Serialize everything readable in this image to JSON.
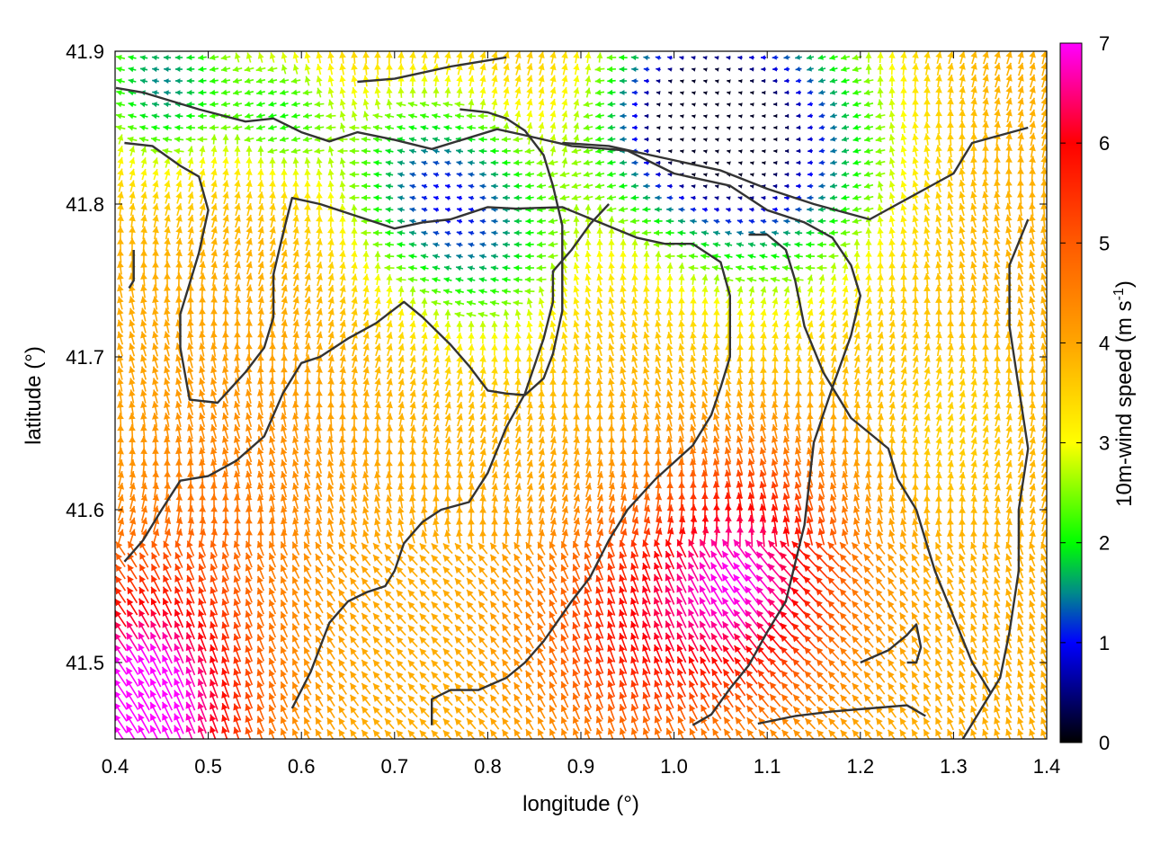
{
  "chart_data": {
    "type": "vector-field",
    "title": "",
    "xlabel": "longitude (°)",
    "ylabel": "latitude (°)",
    "colorbar_label_prefix": "10m-wind speed (m s",
    "colorbar_label_exp": "-1",
    "colorbar_label_suffix": ")",
    "xlim": [
      0.4,
      1.4
    ],
    "ylim": [
      41.45,
      41.9
    ],
    "x_ticks": [
      0.4,
      0.5,
      0.6,
      0.7,
      0.8,
      0.9,
      1.0,
      1.1,
      1.2,
      1.3,
      1.4
    ],
    "x_tick_labels": [
      "0.4",
      "0.5",
      "0.6",
      "0.7",
      "0.8",
      "0.9",
      "1.0",
      "1.1",
      "1.2",
      "1.3",
      "1.4"
    ],
    "y_ticks": [
      41.5,
      41.6,
      41.7,
      41.8,
      41.9
    ],
    "y_tick_labels": [
      "41.5",
      "41.6",
      "41.7",
      "41.8",
      "41.9"
    ],
    "colorbar_range": [
      0,
      7
    ],
    "colorbar_ticks": [
      0,
      1,
      2,
      3,
      4,
      5,
      6,
      7
    ],
    "colorbar_tick_labels": [
      "0",
      "1",
      "2",
      "3",
      "4",
      "5",
      "6",
      "7"
    ],
    "colormap_stops": [
      {
        "v": 0,
        "c": "#000000"
      },
      {
        "v": 1,
        "c": "#0000ff"
      },
      {
        "v": 1.5,
        "c": "#008a8a"
      },
      {
        "v": 2,
        "c": "#00ff00"
      },
      {
        "v": 3,
        "c": "#ffff00"
      },
      {
        "v": 4,
        "c": "#ffa500"
      },
      {
        "v": 5,
        "c": "#ff5a00"
      },
      {
        "v": 6,
        "c": "#ff0000"
      },
      {
        "v": 7,
        "c": "#ff00ff"
      }
    ],
    "grid": false,
    "wind_regions": [
      {
        "region": "northwest low-speed band",
        "lon": [
          0.4,
          0.62
        ],
        "lat": [
          41.84,
          41.9
        ],
        "speed": 1.5,
        "direction": "from east"
      },
      {
        "region": "north-central calm zone",
        "lon": [
          0.95,
          1.28
        ],
        "lat": [
          41.78,
          41.9
        ],
        "speed": 0.6,
        "direction": "variable"
      },
      {
        "region": "central convergence band",
        "lon": [
          0.6,
          0.95
        ],
        "lat": [
          41.68,
          41.84
        ],
        "speed": 2.0,
        "direction": "from east"
      },
      {
        "region": "western slopes",
        "lon": [
          0.4,
          0.7
        ],
        "lat": [
          41.58,
          41.84
        ],
        "speed": 4.0,
        "direction": "from south"
      },
      {
        "region": "southwest maximum",
        "lon": [
          0.4,
          0.58
        ],
        "lat": [
          41.45,
          41.55
        ],
        "speed": 6.8,
        "direction": "from southeast"
      },
      {
        "region": "south-central maximum",
        "lon": [
          1.03,
          1.15
        ],
        "lat": [
          41.52,
          41.6
        ],
        "speed": 6.5,
        "direction": "from southeast"
      },
      {
        "region": "eastern plain",
        "lon": [
          1.1,
          1.4
        ],
        "lat": [
          41.6,
          41.85
        ],
        "speed": 3.5,
        "direction": "from south"
      }
    ],
    "terrain_contours": [
      {
        "name": "contour-1",
        "points": [
          [
            0.401,
            41.876
          ],
          [
            0.43,
            41.873
          ],
          [
            0.49,
            41.862
          ],
          [
            0.54,
            41.854
          ],
          [
            0.57,
            41.856
          ],
          [
            0.6,
            41.847
          ],
          [
            0.63,
            41.841
          ],
          [
            0.66,
            41.847
          ],
          [
            0.7,
            41.842
          ],
          [
            0.74,
            41.836
          ],
          [
            0.81,
            41.849
          ],
          [
            0.84,
            41.845
          ],
          [
            0.89,
            41.838
          ],
          [
            0.95,
            41.835
          ],
          [
            1.0,
            41.82
          ],
          [
            1.06,
            41.812
          ],
          [
            1.1,
            41.796
          ],
          [
            1.14,
            41.788
          ],
          [
            1.17,
            41.778
          ],
          [
            1.19,
            41.76
          ],
          [
            1.2,
            41.74
          ],
          [
            1.19,
            41.714
          ],
          [
            1.17,
            41.68
          ],
          [
            1.15,
            41.644
          ],
          [
            1.14,
            41.59
          ],
          [
            1.12,
            41.54
          ],
          [
            1.1,
            41.52
          ],
          [
            1.08,
            41.498
          ],
          [
            1.06,
            41.483
          ],
          [
            1.04,
            41.466
          ],
          [
            1.02,
            41.459
          ]
        ]
      },
      {
        "name": "contour-2",
        "points": [
          [
            0.41,
            41.84
          ],
          [
            0.44,
            41.838
          ],
          [
            0.47,
            41.825
          ],
          [
            0.49,
            41.818
          ],
          [
            0.5,
            41.796
          ],
          [
            0.49,
            41.768
          ],
          [
            0.48,
            41.748
          ],
          [
            0.47,
            41.728
          ],
          [
            0.47,
            41.706
          ],
          [
            0.48,
            41.672
          ],
          [
            0.51,
            41.67
          ],
          [
            0.54,
            41.69
          ],
          [
            0.56,
            41.706
          ],
          [
            0.57,
            41.726
          ],
          [
            0.57,
            41.754
          ],
          [
            0.58,
            41.78
          ],
          [
            0.59,
            41.804
          ],
          [
            0.62,
            41.8
          ],
          [
            0.66,
            41.792
          ],
          [
            0.7,
            41.784
          ],
          [
            0.73,
            41.788
          ],
          [
            0.76,
            41.79
          ],
          [
            0.8,
            41.798
          ],
          [
            0.83,
            41.797
          ],
          [
            0.88,
            41.798
          ],
          [
            0.92,
            41.788
          ],
          [
            0.96,
            41.778
          ],
          [
            0.99,
            41.774
          ],
          [
            1.02,
            41.774
          ],
          [
            1.05,
            41.762
          ],
          [
            1.06,
            41.74
          ],
          [
            1.06,
            41.7
          ],
          [
            1.05,
            41.68
          ],
          [
            1.04,
            41.662
          ],
          [
            1.02,
            41.642
          ],
          [
            0.98,
            41.62
          ],
          [
            0.95,
            41.6
          ],
          [
            0.93,
            41.58
          ],
          [
            0.91,
            41.556
          ],
          [
            0.89,
            41.54
          ],
          [
            0.86,
            41.514
          ],
          [
            0.84,
            41.5
          ],
          [
            0.82,
            41.49
          ],
          [
            0.79,
            41.482
          ],
          [
            0.76,
            41.482
          ],
          [
            0.74,
            41.476
          ],
          [
            0.74,
            41.459
          ]
        ]
      },
      {
        "name": "contour-3",
        "points": [
          [
            0.41,
            41.566
          ],
          [
            0.43,
            41.58
          ],
          [
            0.45,
            41.6
          ],
          [
            0.47,
            41.619
          ],
          [
            0.5,
            41.622
          ],
          [
            0.53,
            41.632
          ],
          [
            0.56,
            41.648
          ],
          [
            0.58,
            41.676
          ],
          [
            0.6,
            41.696
          ],
          [
            0.62,
            41.7
          ],
          [
            0.65,
            41.712
          ],
          [
            0.68,
            41.722
          ],
          [
            0.71,
            41.736
          ],
          [
            0.73,
            41.726
          ],
          [
            0.76,
            41.708
          ],
          [
            0.78,
            41.694
          ],
          [
            0.8,
            41.678
          ],
          [
            0.82,
            41.676
          ],
          [
            0.84,
            41.675
          ],
          [
            0.86,
            41.686
          ],
          [
            0.87,
            41.702
          ],
          [
            0.88,
            41.73
          ],
          [
            0.88,
            41.758
          ],
          [
            0.88,
            41.786
          ],
          [
            0.87,
            41.812
          ],
          [
            0.86,
            41.832
          ],
          [
            0.84,
            41.848
          ],
          [
            0.82,
            41.856
          ],
          [
            0.8,
            41.86
          ],
          [
            0.77,
            41.862
          ]
        ]
      },
      {
        "name": "contour-4",
        "points": [
          [
            0.59,
            41.47
          ],
          [
            0.61,
            41.494
          ],
          [
            0.62,
            41.51
          ],
          [
            0.63,
            41.526
          ],
          [
            0.65,
            41.54
          ],
          [
            0.67,
            41.546
          ],
          [
            0.69,
            41.55
          ],
          [
            0.7,
            41.56
          ],
          [
            0.71,
            41.578
          ],
          [
            0.73,
            41.592
          ],
          [
            0.75,
            41.6
          ],
          [
            0.78,
            41.605
          ],
          [
            0.8,
            41.624
          ],
          [
            0.82,
            41.654
          ],
          [
            0.84,
            41.676
          ],
          [
            0.86,
            41.712
          ],
          [
            0.87,
            41.736
          ],
          [
            0.87,
            41.756
          ],
          [
            0.89,
            41.77
          ],
          [
            0.91,
            41.787
          ],
          [
            0.93,
            41.8
          ]
        ]
      },
      {
        "name": "contour-5",
        "points": [
          [
            0.88,
            41.84
          ],
          [
            0.93,
            41.838
          ],
          [
            0.99,
            41.83
          ],
          [
            1.05,
            41.822
          ],
          [
            1.1,
            41.81
          ],
          [
            1.15,
            41.8
          ],
          [
            1.21,
            41.79
          ],
          [
            1.24,
            41.8
          ],
          [
            1.27,
            41.81
          ],
          [
            1.3,
            41.82
          ],
          [
            1.32,
            41.84
          ],
          [
            1.35,
            41.845
          ],
          [
            1.38,
            41.85
          ]
        ]
      },
      {
        "name": "contour-6",
        "points": [
          [
            1.34,
            41.48
          ],
          [
            1.32,
            41.5
          ],
          [
            1.3,
            41.53
          ],
          [
            1.28,
            41.56
          ],
          [
            1.27,
            41.58
          ],
          [
            1.26,
            41.6
          ],
          [
            1.24,
            41.62
          ],
          [
            1.23,
            41.64
          ],
          [
            1.21,
            41.65
          ],
          [
            1.19,
            41.66
          ],
          [
            1.16,
            41.69
          ],
          [
            1.14,
            41.72
          ],
          [
            1.13,
            41.75
          ],
          [
            1.12,
            41.77
          ],
          [
            1.1,
            41.78
          ],
          [
            1.08,
            41.78
          ]
        ]
      },
      {
        "name": "contour-7",
        "points": [
          [
            1.2,
            41.5
          ],
          [
            1.23,
            41.508
          ],
          [
            1.25,
            41.518
          ],
          [
            1.26,
            41.525
          ],
          [
            1.265,
            41.51
          ],
          [
            1.26,
            41.5
          ],
          [
            1.25,
            41.5
          ]
        ]
      },
      {
        "name": "contour-8",
        "points": [
          [
            1.09,
            41.46
          ],
          [
            1.13,
            41.465
          ],
          [
            1.17,
            41.468
          ],
          [
            1.21,
            41.47
          ],
          [
            1.25,
            41.472
          ],
          [
            1.27,
            41.465
          ]
        ]
      },
      {
        "name": "contour-9",
        "points": [
          [
            1.31,
            41.45
          ],
          [
            1.33,
            41.47
          ],
          [
            1.35,
            41.49
          ],
          [
            1.36,
            41.52
          ],
          [
            1.37,
            41.56
          ],
          [
            1.37,
            41.6
          ],
          [
            1.38,
            41.64
          ],
          [
            1.37,
            41.68
          ],
          [
            1.36,
            41.72
          ],
          [
            1.36,
            41.76
          ],
          [
            1.38,
            41.79
          ]
        ]
      },
      {
        "name": "contour-10",
        "points": [
          [
            0.415,
            41.745
          ],
          [
            0.42,
            41.75
          ],
          [
            0.42,
            41.77
          ]
        ]
      },
      {
        "name": "contour-11",
        "points": [
          [
            0.66,
            41.88
          ],
          [
            0.7,
            41.882
          ],
          [
            0.73,
            41.886
          ],
          [
            0.76,
            41.89
          ],
          [
            0.79,
            41.893
          ],
          [
            0.82,
            41.896
          ]
        ]
      }
    ]
  }
}
